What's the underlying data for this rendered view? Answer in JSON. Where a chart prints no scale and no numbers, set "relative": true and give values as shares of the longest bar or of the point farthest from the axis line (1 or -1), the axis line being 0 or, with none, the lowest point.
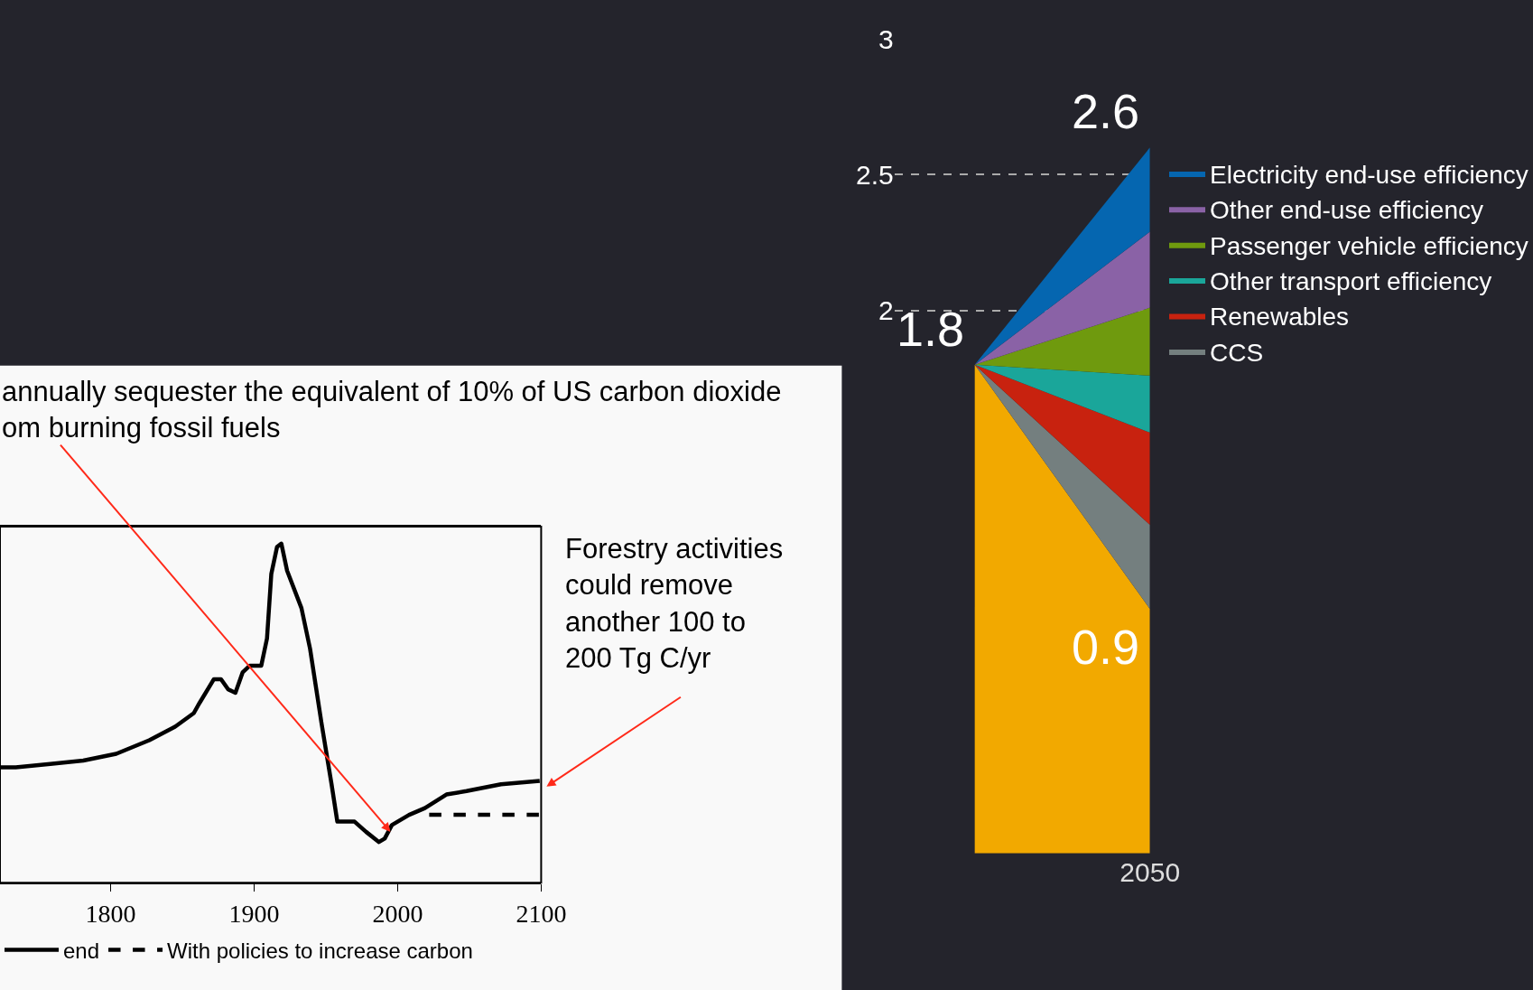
{
  "chart_data": [
    {
      "type": "area",
      "stacked": true,
      "categories": [
        null,
        "2050"
      ],
      "ylim": [
        0,
        3
      ],
      "yticks": [
        2,
        2.5,
        3
      ],
      "grid": "y",
      "legend": "right",
      "marker": "none",
      "series": [
        {
          "color": "#f2a900",
          "values": [
            1.8,
            0.9
          ]
        },
        {
          "name": "CCS",
          "color": "#747f7f",
          "values": [
            0,
            0.31
          ]
        },
        {
          "name": "Renewables",
          "color": "#c8220f",
          "values": [
            0,
            0.34
          ]
        },
        {
          "name": "Other transport efficiency",
          "color": "#1aa69a",
          "values": [
            0,
            0.21
          ]
        },
        {
          "name": "Passenger vehicle efficiency",
          "color": "#6f9a0e",
          "values": [
            0,
            0.25
          ]
        },
        {
          "name": "Other end-use efficiency",
          "color": "#8a62a6",
          "values": [
            0,
            0.28
          ]
        },
        {
          "name": "Electricity end-use efficiency",
          "color": "#0566b0",
          "values": [
            0,
            0.31
          ]
        }
      ],
      "annotations": [
        "1.8",
        {
          "text": "2.6",
          "x": "2050",
          "y": 2.6
        },
        {
          "text": "0.9",
          "x": "2050",
          "y": 0.9
        }
      ]
    },
    {
      "type": "line",
      "relative": true,
      "xlim": [
        1723,
        2100
      ],
      "xticks": [
        1800,
        1900,
        2000,
        2100
      ],
      "legend": "bottom",
      "marker": "none",
      "series": [
        {
          "name": "end",
          "color": "#000000",
          "line_style": "solid",
          "x": [
            1723,
            1734,
            1758,
            1781,
            1804,
            1827,
            1845,
            1858,
            1862,
            1872,
            1877,
            1882,
            1887,
            1892,
            1897,
            1905,
            1909,
            1912,
            1916,
            1919,
            1923,
            1933,
            1939,
            1947,
            1954,
            1958,
            1970,
            1978,
            1987,
            1991,
            1996,
            2008,
            2019,
            2034,
            2048,
            2072,
            2099
          ],
          "values": [
            0.34,
            0.34,
            0.35,
            0.36,
            0.38,
            0.42,
            0.46,
            0.5,
            0.53,
            0.6,
            0.6,
            0.57,
            0.56,
            0.62,
            0.64,
            0.64,
            0.72,
            0.91,
            0.99,
            1.0,
            0.92,
            0.81,
            0.69,
            0.47,
            0.29,
            0.18,
            0.18,
            0.15,
            0.12,
            0.13,
            0.17,
            0.2,
            0.22,
            0.26,
            0.27,
            0.29,
            0.3
          ]
        },
        {
          "name": "With policies to increase carbon",
          "color": "#000000",
          "line_style": "dashed",
          "x": [
            2022,
            2100
          ],
          "values": [
            0.2,
            0.2
          ]
        }
      ],
      "annotations": [
        {
          "text": "annually sequester the equivalent of 10% of US carbon dioxide\nom burning fossil fuels",
          "x": 1995,
          "y": 0.15
        },
        "Forestry activities\ncould remove\nanother 100 to\n200 Tg C/yr"
      ]
    }
  ]
}
